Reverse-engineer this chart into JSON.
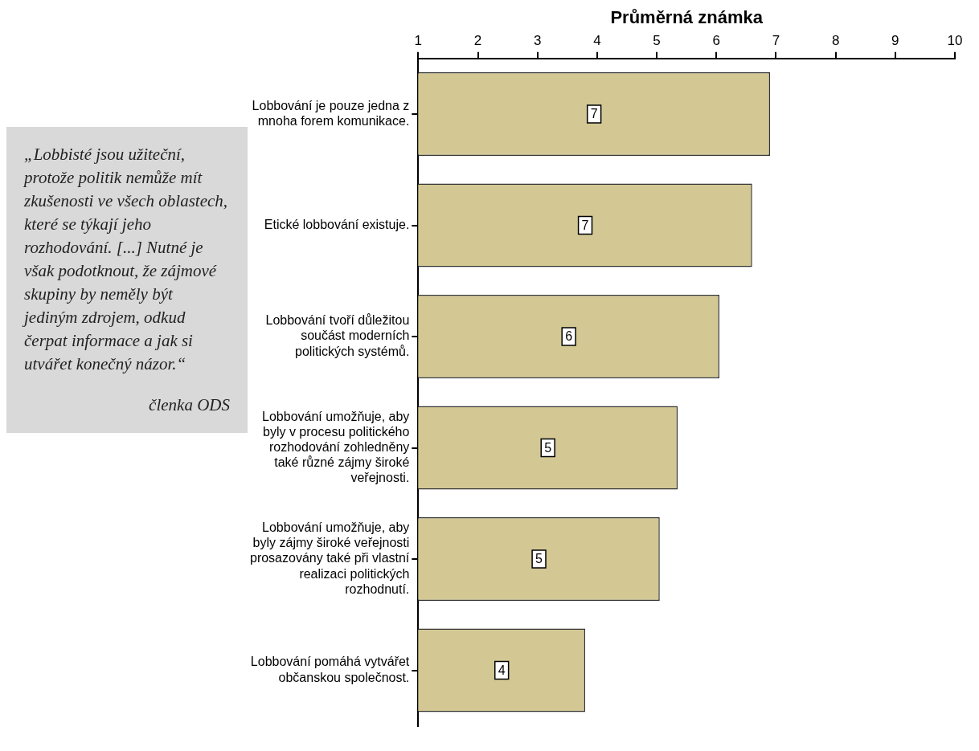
{
  "chart_data": {
    "type": "bar",
    "orientation": "horizontal",
    "xlabel": "Průměrná známka",
    "categories": [
      "Lobbování je pouze jedna z mnoha forem komunikace.",
      "Etické lobbování existuje.",
      "Lobbování tvoří důležitou součást moderních politických systémů.",
      "Lobbování umožňuje, aby byly v procesu politického rozhodování zohledněny také různé zájmy široké veřejnosti.",
      "Lobbování umožňuje, aby byly zájmy široké veřejnosti prosazovány také při vlastní realizaci politických rozhodnutí.",
      "Lobbování pomáhá vytvářet občanskou společnost."
    ],
    "values": [
      6.9,
      6.6,
      6.05,
      5.35,
      5.05,
      3.8
    ],
    "value_labels": [
      "7",
      "7",
      "6",
      "5",
      "5",
      "4"
    ],
    "color": "#d3c894",
    "xlim": [
      1,
      10
    ],
    "xticks": [
      1,
      2,
      3,
      4,
      5,
      6,
      7,
      8,
      9,
      10
    ],
    "annotations": [
      "„Lobbisté jsou užiteční, protože politik nemůže mít zkušenosti ve všech oblastech, které se týkají jeho rozhodování. [...] Nutné je však podotknout, že zájmové skupiny by neměly být jediným zdrojem, odkud čerpat informace a jak si utvářet konečný názor.“",
      "členka ODS"
    ]
  }
}
